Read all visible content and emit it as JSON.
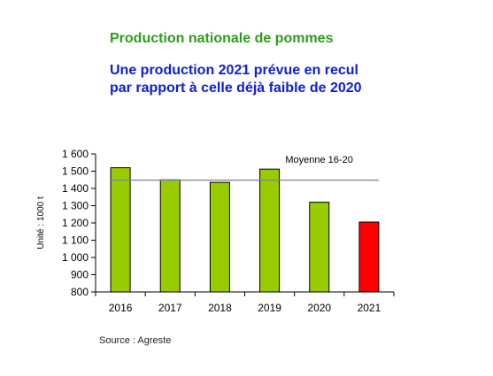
{
  "header": {
    "title": "Production nationale de pommes",
    "subtitle_line1": "Une production 2021 prévue en recul",
    "subtitle_line2": "par rapport à celle déjà faible de 2020"
  },
  "colors": {
    "title": "#2f9a1e",
    "subtitle": "#1020d0",
    "bar_default": "#99cc00",
    "bar_highlight": "#ff0000",
    "average_line": "#7f7fa0"
  },
  "chart_data": {
    "type": "bar",
    "categories": [
      "2016",
      "2017",
      "2018",
      "2019",
      "2020",
      "2021"
    ],
    "values": [
      1520,
      1450,
      1435,
      1512,
      1320,
      1205
    ],
    "highlight_index": 5,
    "ylabel": "Unité : 1000 t",
    "ylim": [
      800,
      1600
    ],
    "yticks": [
      800,
      900,
      1000,
      1100,
      1200,
      1300,
      1400,
      1500,
      1600
    ],
    "ytick_labels": [
      "800",
      "900",
      "1 000",
      "1 100",
      "1 200",
      "1 300",
      "1 400",
      "1 500",
      "1 600"
    ],
    "average": {
      "label": "Moyenne 16-20",
      "value": 1448
    },
    "grid": false
  },
  "footer": {
    "source": "Source : Agreste"
  }
}
